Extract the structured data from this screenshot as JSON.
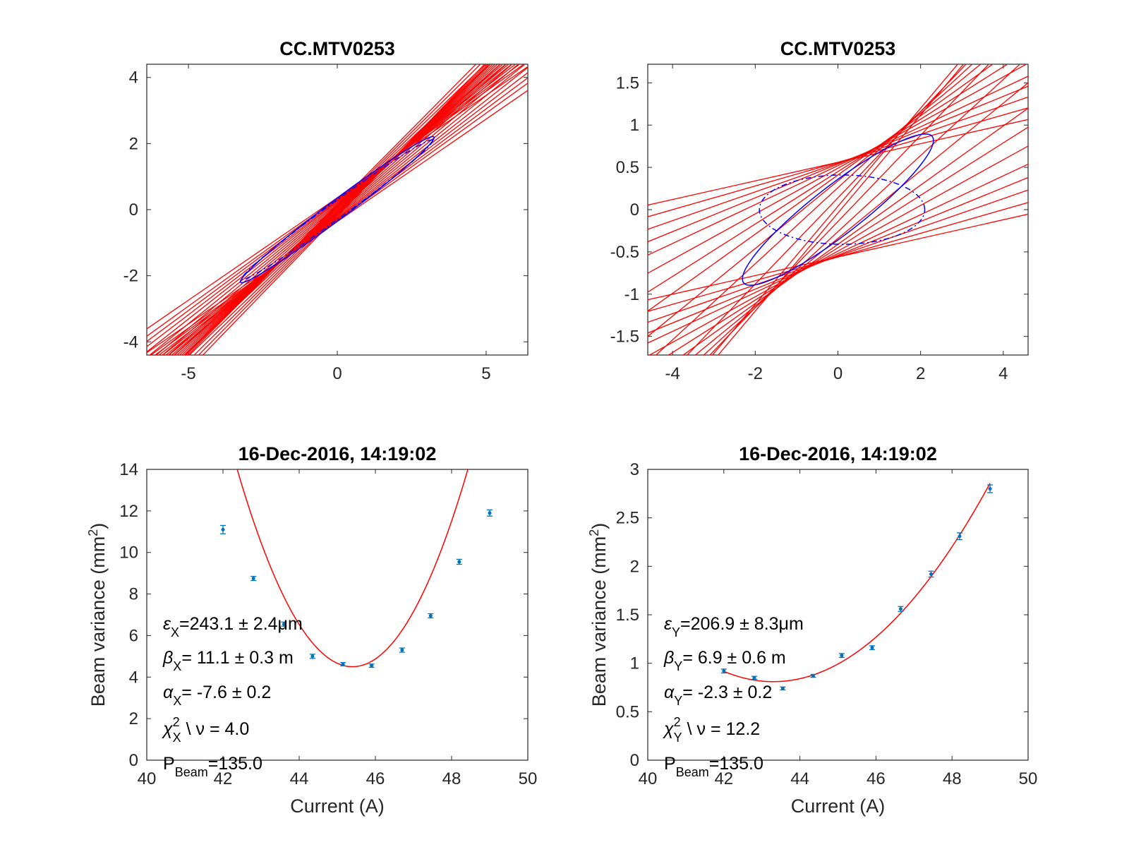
{
  "chart_data": [
    {
      "id": "tl",
      "type": "phase-space",
      "title": "CC.MTV0253",
      "xlim": [
        -6.4,
        6.4
      ],
      "ylim": [
        -4.4,
        4.4
      ],
      "xticks": [
        -5,
        0,
        5
      ],
      "yticks": [
        -4,
        -2,
        0,
        2,
        4
      ],
      "line_color": "#ff0000",
      "ellipse_color": "#0000ff",
      "lines": [
        {
          "slope": 0.62,
          "intercept": 0.36
        },
        {
          "slope": 0.65,
          "intercept": 0.33
        },
        {
          "slope": 0.67,
          "intercept": 0.3
        },
        {
          "slope": 0.69,
          "intercept": 0.27
        },
        {
          "slope": 0.71,
          "intercept": 0.24
        },
        {
          "slope": 0.73,
          "intercept": 0.2
        },
        {
          "slope": 0.75,
          "intercept": 0.16
        },
        {
          "slope": 0.77,
          "intercept": 0.12
        },
        {
          "slope": 0.79,
          "intercept": 0.08
        },
        {
          "slope": 0.81,
          "intercept": 0.04
        },
        {
          "slope": 0.83,
          "intercept": 0.0
        },
        {
          "slope": 0.85,
          "intercept": -0.04
        },
        {
          "slope": 0.87,
          "intercept": -0.08
        },
        {
          "slope": 0.89,
          "intercept": -0.12
        },
        {
          "slope": 0.91,
          "intercept": -0.16
        },
        {
          "slope": 0.93,
          "intercept": -0.2
        },
        {
          "slope": 0.62,
          "intercept": -0.36
        },
        {
          "slope": 0.65,
          "intercept": -0.33
        },
        {
          "slope": 0.67,
          "intercept": -0.3
        },
        {
          "slope": 0.69,
          "intercept": -0.27
        },
        {
          "slope": 0.71,
          "intercept": -0.24
        },
        {
          "slope": 0.73,
          "intercept": -0.2
        },
        {
          "slope": 0.75,
          "intercept": -0.16
        },
        {
          "slope": 0.77,
          "intercept": -0.12
        },
        {
          "slope": 0.79,
          "intercept": -0.08
        },
        {
          "slope": 0.81,
          "intercept": -0.04
        },
        {
          "slope": 0.85,
          "intercept": 0.04
        },
        {
          "slope": 0.87,
          "intercept": 0.08
        },
        {
          "slope": 0.89,
          "intercept": 0.12
        },
        {
          "slope": 0.91,
          "intercept": 0.16
        }
      ],
      "ellipses": [
        {
          "style": "solid",
          "cx": 0,
          "cy": 0,
          "u": [
            3.25,
            2.2
          ],
          "v": [
            0.2,
            -0.22
          ]
        },
        {
          "style": "dashdot",
          "cx": 0,
          "cy": 0,
          "u": [
            3.2,
            2.1
          ],
          "v": [
            0.17,
            -0.19
          ]
        }
      ]
    },
    {
      "id": "tr",
      "type": "phase-space",
      "title": "CC.MTV0253",
      "xlim": [
        -4.6,
        4.6
      ],
      "ylim": [
        -1.72,
        1.72
      ],
      "xticks": [
        -4,
        -2,
        0,
        2,
        4
      ],
      "yticks": [
        -1.5,
        -1,
        -0.5,
        0,
        0.5,
        1,
        1.5
      ],
      "line_color": "#ff0000",
      "ellipse_color": "#0000ff",
      "lines": [
        {
          "slope": 0.11,
          "intercept": 0.56
        },
        {
          "slope": 0.14,
          "intercept": 0.56
        },
        {
          "slope": 0.17,
          "intercept": 0.55
        },
        {
          "slope": 0.2,
          "intercept": 0.54
        },
        {
          "slope": 0.23,
          "intercept": 0.52
        },
        {
          "slope": 0.27,
          "intercept": 0.49
        },
        {
          "slope": 0.31,
          "intercept": 0.45
        },
        {
          "slope": 0.35,
          "intercept": 0.41
        },
        {
          "slope": 0.4,
          "intercept": 0.34
        },
        {
          "slope": 0.45,
          "intercept": 0.26
        },
        {
          "slope": 0.51,
          "intercept": 0.14
        },
        {
          "slope": 0.58,
          "intercept": -0.04
        },
        {
          "slope": 0.11,
          "intercept": -0.56
        },
        {
          "slope": 0.14,
          "intercept": -0.56
        },
        {
          "slope": 0.17,
          "intercept": -0.55
        },
        {
          "slope": 0.2,
          "intercept": -0.54
        },
        {
          "slope": 0.23,
          "intercept": -0.52
        },
        {
          "slope": 0.27,
          "intercept": -0.49
        },
        {
          "slope": 0.31,
          "intercept": -0.45
        },
        {
          "slope": 0.35,
          "intercept": -0.41
        },
        {
          "slope": 0.4,
          "intercept": -0.34
        },
        {
          "slope": 0.45,
          "intercept": -0.26
        },
        {
          "slope": 0.51,
          "intercept": -0.14
        },
        {
          "slope": 0.58,
          "intercept": 0.04
        }
      ],
      "ellipses": [
        {
          "style": "solid",
          "cx": 0,
          "cy": 0,
          "u": [
            2.3,
            0.85
          ],
          "v": [
            0.22,
            -0.28
          ]
        },
        {
          "style": "dashdot",
          "cx": 0.1,
          "cy": 0,
          "u": [
            2.0,
            0.0
          ],
          "v": [
            0.0,
            0.41
          ]
        }
      ]
    },
    {
      "id": "bl",
      "type": "scatter",
      "title": "16-Dec-2016, 14:19:02",
      "xlabel": "Current (A)",
      "ylabel": "Beam variance (mm",
      "ylabel_sup": "2",
      "ylabel_end": ")",
      "xlim": [
        40,
        50
      ],
      "ylim": [
        0,
        14
      ],
      "xticks": [
        40,
        42,
        44,
        46,
        48,
        50
      ],
      "yticks": [
        0,
        2,
        4,
        6,
        8,
        10,
        12,
        14
      ],
      "point_color": "#0072bd",
      "fit_color": "#ff0000",
      "points": [
        {
          "x": 42.0,
          "y": 11.1,
          "err": 0.2
        },
        {
          "x": 42.8,
          "y": 8.75,
          "err": 0.1
        },
        {
          "x": 43.6,
          "y": 6.55,
          "err": 0.1
        },
        {
          "x": 44.35,
          "y": 5.0,
          "err": 0.1
        },
        {
          "x": 45.15,
          "y": 4.62,
          "err": 0.08
        },
        {
          "x": 45.9,
          "y": 4.55,
          "err": 0.08
        },
        {
          "x": 46.7,
          "y": 5.3,
          "err": 0.1
        },
        {
          "x": 47.45,
          "y": 6.95,
          "err": 0.1
        },
        {
          "x": 48.2,
          "y": 9.55,
          "err": 0.12
        },
        {
          "x": 49.0,
          "y": 11.9,
          "err": 0.15
        }
      ],
      "fit": {
        "x_range": [
          42,
          49
        ],
        "vertex_x": 45.4,
        "vertex_y": 4.5,
        "a": 1.037
      },
      "annotations": [
        {
          "sym": "ε",
          "sub": "X",
          "text": "=243.1 ± 2.4μm"
        },
        {
          "sym": "β",
          "sub": "X",
          "text": "= 11.1 ± 0.3 m"
        },
        {
          "sym": "α",
          "sub": "X",
          "text": "= -7.6 ± 0.2"
        },
        {
          "sym": "χ",
          "sub": "X",
          "sup": "2",
          "text": " \\ ν =  4.0"
        },
        {
          "sym": "P",
          "sub": "Beam",
          "text": "=135.0"
        }
      ]
    },
    {
      "id": "br",
      "type": "scatter",
      "title": "16-Dec-2016, 14:19:02",
      "xlabel": "Current (A)",
      "ylabel": "Beam variance (mm",
      "ylabel_sup": "2",
      "ylabel_end": ")",
      "xlim": [
        40,
        50
      ],
      "ylim": [
        0,
        3
      ],
      "xticks": [
        40,
        42,
        44,
        46,
        48,
        50
      ],
      "yticks": [
        0,
        0.5,
        1,
        1.5,
        2,
        2.5,
        3
      ],
      "point_color": "#0072bd",
      "fit_color": "#ff0000",
      "points": [
        {
          "x": 42.0,
          "y": 0.92,
          "err": 0.02
        },
        {
          "x": 42.8,
          "y": 0.85,
          "err": 0.015
        },
        {
          "x": 43.55,
          "y": 0.74,
          "err": 0.015
        },
        {
          "x": 44.35,
          "y": 0.87,
          "err": 0.015
        },
        {
          "x": 45.1,
          "y": 1.08,
          "err": 0.02
        },
        {
          "x": 45.9,
          "y": 1.16,
          "err": 0.02
        },
        {
          "x": 46.65,
          "y": 1.56,
          "err": 0.025
        },
        {
          "x": 47.45,
          "y": 1.92,
          "err": 0.03
        },
        {
          "x": 48.2,
          "y": 2.31,
          "err": 0.035
        },
        {
          "x": 49.0,
          "y": 2.8,
          "err": 0.04
        }
      ],
      "fit": {
        "x_range": [
          42,
          49
        ],
        "vertex_x": 43.3,
        "vertex_y": 0.81,
        "a": 0.063
      },
      "annotations": [
        {
          "sym": "ε",
          "sub": "Y",
          "text": "=206.9 ± 8.3μm"
        },
        {
          "sym": "β",
          "sub": "Y",
          "text": "=  6.9 ± 0.6 m"
        },
        {
          "sym": "α",
          "sub": "Y",
          "text": "= -2.3 ± 0.2"
        },
        {
          "sym": "χ",
          "sub": "Y",
          "sup": "2",
          "text": " \\ ν = 12.2"
        },
        {
          "sym": "P",
          "sub": "Beam",
          "text": "=135.0"
        }
      ]
    }
  ]
}
